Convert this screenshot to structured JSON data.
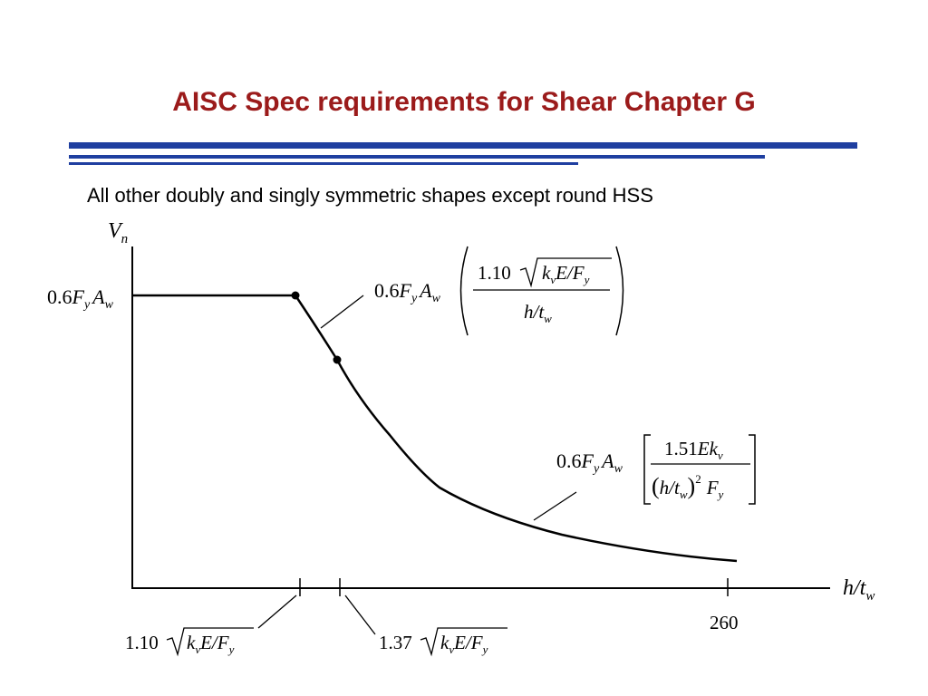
{
  "slide": {
    "title": "AISC Spec requirements for Shear Chapter G",
    "subtitle": "All other doubly and singly symmetric shapes except round HSS"
  },
  "colors": {
    "title": "#9B1B1B",
    "rules": "#1F3FA0",
    "ink": "#000000"
  },
  "diagram": {
    "y_axis_label": {
      "main": "V",
      "sub": "n"
    },
    "x_axis_label": {
      "main": "h/t",
      "sub": "w"
    },
    "plateau_label": {
      "pre": "0.6",
      "F": "F",
      "F_sub": "y",
      "A": "A",
      "A_sub": "w"
    },
    "inelastic_formula": {
      "prefix": {
        "pre": "0.6",
        "F": "F",
        "F_sub": "y",
        "A": "A",
        "A_sub": "w"
      },
      "num_coef": "1.10",
      "num_root": {
        "k": "k",
        "k_sub": "v",
        "rest": "E/",
        "F": "F",
        "F_sub": "y"
      },
      "den": {
        "main": "h/t",
        "sub": "w"
      }
    },
    "elastic_formula": {
      "prefix": {
        "pre": "0.6",
        "F": "F",
        "F_sub": "y",
        "A": "A",
        "A_sub": "w"
      },
      "num": {
        "pre": "1.51",
        "E": "Ek",
        "sub": "v"
      },
      "den": {
        "paren_open": "(",
        "h": "h/t",
        "h_sub": "w",
        "paren_close": ")",
        "exp": "2",
        "F": "F",
        "F_sub": "y"
      }
    },
    "tick_label_1": {
      "coef": "1.10",
      "k": "k",
      "k_sub": "v",
      "rest": "E/",
      "F": "F",
      "F_sub": "y"
    },
    "tick_label_2": {
      "coef": "1.37",
      "k": "k",
      "k_sub": "v",
      "rest": "E/",
      "F": "F",
      "F_sub": "y"
    },
    "tick_label_3": "260"
  }
}
